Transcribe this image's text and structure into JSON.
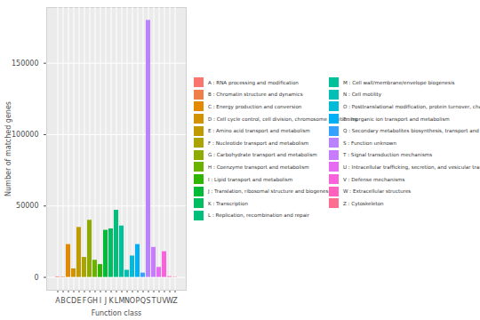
{
  "chart_data": {
    "type": "bar",
    "x_label": "Function class",
    "y_label": "Number of matched genes",
    "categories": [
      "A",
      "B",
      "C",
      "D",
      "E",
      "F",
      "G",
      "H",
      "I",
      "J",
      "K",
      "L",
      "M",
      "N",
      "O",
      "P",
      "Q",
      "S",
      "T",
      "U",
      "V",
      "W",
      "Z"
    ],
    "values": [
      400,
      300,
      23000,
      6000,
      35000,
      14000,
      40000,
      12000,
      9000,
      33000,
      34000,
      47000,
      36000,
      5000,
      15000,
      23000,
      3000,
      180000,
      21000,
      7000,
      18000,
      500,
      200
    ],
    "colors": [
      "#F8766D",
      "#EF7F49",
      "#E38900",
      "#D39200",
      "#C09B00",
      "#AAA300",
      "#8FAA00",
      "#6BB100",
      "#2EB600",
      "#00BA38",
      "#00BD5F",
      "#00BF7D",
      "#00C19A",
      "#00C0B5",
      "#00BCD6",
      "#00B0F6",
      "#35A2FF",
      "#B983FF",
      "#C77CFF",
      "#E76BF3",
      "#FA62DB",
      "#FF62BC",
      "#FF6C91"
    ],
    "legend_labels": [
      "A : RNA processing and modification",
      "B : Chromatin structure and dynamics",
      "C : Energy production and conversion",
      "D : Cell cycle control, cell division, chromosome partitioning",
      "E : Amino acid transport and metabolism",
      "F : Nucleotide transport and metabolism",
      "G : Carbohydrate transport and metabolism",
      "H : Coenzyme transport and metabolism",
      "I : Lipid transport and metabolism",
      "J : Translation, ribosomal structure and biogenesis",
      "K : Transcription",
      "L : Replication, recombination and repair",
      "M : Cell wall/membrane/envelope biogenesis",
      "N : Cell motility",
      "O : Posttranslational modification, protein turnover, chaperones",
      "P : Inorganic ion transport and metabolism",
      "Q : Secondary metabolites biosynthesis, transport and catabolism",
      "S : Function unknown",
      "T : Signal transduction mechanisms",
      "U : Intracellular trafficking, secretion, and vesicular transport",
      "V : Defense mechanisms",
      "W : Extracellular structures",
      "Z : Cytoskeleton"
    ],
    "legend": "right",
    "ylim": [
      -9000,
      189000
    ],
    "yticks": [
      0,
      50000,
      100000,
      150000
    ],
    "grid": true
  }
}
